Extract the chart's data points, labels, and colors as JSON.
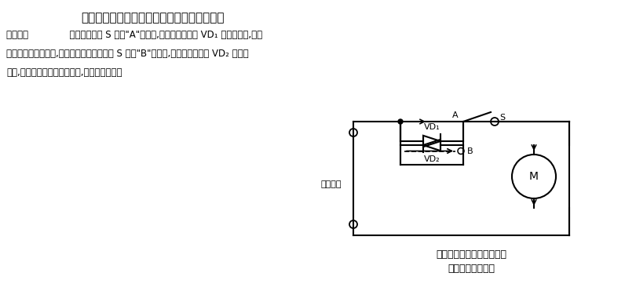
{
  "title": "交流电源驱动的直流电动机正、反转控制电路",
  "subtitle_line1": "交流电源驱动的直流电动机",
  "subtitle_line2": "正、反转控制电路",
  "body_text_line1": "电路如图              所示。当开关 S 置于\"A\"位置时,电流通过二极管 VD₁ 流经电动机,电流",
  "body_text_line2": "方向如图中实线所示,则电动机正转。当开关 S 置于\"B\"位置时,电流通过二极管 VD₂ 流经电",
  "body_text_line3": "动机,电流方向如图中虚线所示,则电动机反转。",
  "label_ac": "交流电源",
  "label_VD1": "VD₁",
  "label_VD2": "VD₂",
  "label_A": "A",
  "label_B": "B",
  "label_S": "S",
  "label_M": "M",
  "bg_color": "#ffffff",
  "line_color": "#000000",
  "font_size_title": 11,
  "font_size_body": 9,
  "font_size_label": 8
}
